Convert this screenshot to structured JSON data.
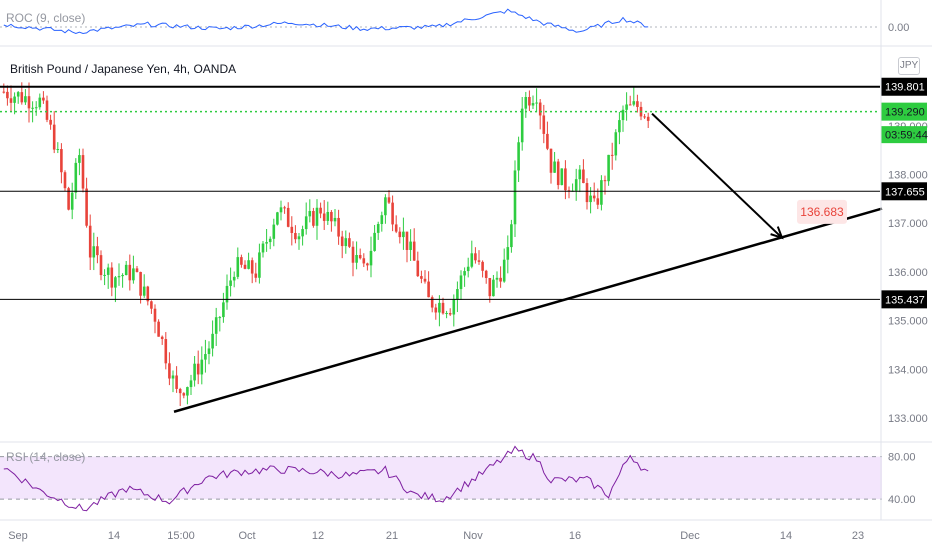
{
  "chart_data": {
    "type": "candlestick",
    "title": "British Pound / Japanese Yen, 4h, OANDA",
    "currency": "JPY",
    "price_axis": {
      "ticks": [
        "139.000",
        "138.000",
        "137.000",
        "136.000",
        "135.000",
        "134.000",
        "133.000"
      ],
      "range": [
        132.55,
        140.35
      ]
    },
    "time_axis": {
      "ticks": [
        "Sep",
        "14",
        "15:00",
        "Oct",
        "12",
        "21",
        "Nov",
        "16",
        "Dec",
        "14",
        "23"
      ]
    },
    "horizontal_levels": [
      {
        "label": "139.801",
        "value": 139.801,
        "style": "thick"
      },
      {
        "label": "137.655",
        "value": 137.655,
        "style": "thin"
      },
      {
        "label": "135.437",
        "value": 135.437,
        "style": "thin"
      }
    ],
    "current_price": {
      "label": "139.290",
      "value": 139.29,
      "countdown": "03:59:44"
    },
    "target": {
      "label": "136.683",
      "value": 136.683
    },
    "trendline": {
      "from": 133.13,
      "to": 137.3
    },
    "projection": {
      "from": 139.25,
      "to": 136.7
    },
    "candle_colors": {
      "up": "#2ecc40",
      "down": "#e8433a"
    },
    "bar_count": 180,
    "price_path": [
      {
        "bar": 0,
        "price": 139.7
      },
      {
        "bar": 10,
        "price": 139.5
      },
      {
        "bar": 14,
        "price": 138.7
      },
      {
        "bar": 18,
        "price": 137.3
      },
      {
        "bar": 21,
        "price": 138.4
      },
      {
        "bar": 24,
        "price": 136.4
      },
      {
        "bar": 30,
        "price": 135.9
      },
      {
        "bar": 36,
        "price": 136.0
      },
      {
        "bar": 42,
        "price": 135.1
      },
      {
        "bar": 48,
        "price": 133.5
      },
      {
        "bar": 52,
        "price": 133.8
      },
      {
        "bar": 58,
        "price": 134.6
      },
      {
        "bar": 64,
        "price": 136.1
      },
      {
        "bar": 70,
        "price": 136.0
      },
      {
        "bar": 76,
        "price": 137.3
      },
      {
        "bar": 82,
        "price": 136.8
      },
      {
        "bar": 88,
        "price": 137.3
      },
      {
        "bar": 94,
        "price": 136.7
      },
      {
        "bar": 100,
        "price": 136.0
      },
      {
        "bar": 106,
        "price": 137.5
      },
      {
        "bar": 112,
        "price": 136.6
      },
      {
        "bar": 118,
        "price": 135.4
      },
      {
        "bar": 124,
        "price": 135.3
      },
      {
        "bar": 130,
        "price": 136.4
      },
      {
        "bar": 135,
        "price": 135.6
      },
      {
        "bar": 140,
        "price": 136.3
      },
      {
        "bar": 144,
        "price": 139.5
      },
      {
        "bar": 148,
        "price": 139.7
      },
      {
        "bar": 152,
        "price": 138.2
      },
      {
        "bar": 156,
        "price": 137.8
      },
      {
        "bar": 160,
        "price": 137.9
      },
      {
        "bar": 164,
        "price": 137.3
      },
      {
        "bar": 168,
        "price": 138.2
      },
      {
        "bar": 172,
        "price": 139.3
      },
      {
        "bar": 176,
        "price": 139.4
      },
      {
        "bar": 179,
        "price": 139.25
      }
    ],
    "roc": {
      "label": "ROC (9, close)",
      "zero_label": "0.00",
      "path": [
        {
          "bar": 0,
          "value": 0.3
        },
        {
          "bar": 20,
          "value": -0.6
        },
        {
          "bar": 40,
          "value": 0.3
        },
        {
          "bar": 60,
          "value": -0.2
        },
        {
          "bar": 80,
          "value": 0.5
        },
        {
          "bar": 100,
          "value": -0.2
        },
        {
          "bar": 120,
          "value": 0.0
        },
        {
          "bar": 140,
          "value": 1.8
        },
        {
          "bar": 150,
          "value": 0.4
        },
        {
          "bar": 160,
          "value": -0.5
        },
        {
          "bar": 172,
          "value": 0.9
        },
        {
          "bar": 179,
          "value": 0.1
        }
      ]
    },
    "rsi": {
      "label": "RSI (14, close)",
      "levels": [
        "80.00",
        "40.00"
      ],
      "range": [
        25,
        90
      ],
      "path": [
        {
          "bar": 0,
          "value": 70
        },
        {
          "bar": 10,
          "value": 48
        },
        {
          "bar": 22,
          "value": 30
        },
        {
          "bar": 34,
          "value": 50
        },
        {
          "bar": 46,
          "value": 38
        },
        {
          "bar": 56,
          "value": 60
        },
        {
          "bar": 66,
          "value": 66
        },
        {
          "bar": 76,
          "value": 68
        },
        {
          "bar": 86,
          "value": 66
        },
        {
          "bar": 96,
          "value": 62
        },
        {
          "bar": 106,
          "value": 67
        },
        {
          "bar": 114,
          "value": 44
        },
        {
          "bar": 122,
          "value": 40
        },
        {
          "bar": 132,
          "value": 62
        },
        {
          "bar": 142,
          "value": 86
        },
        {
          "bar": 148,
          "value": 78
        },
        {
          "bar": 152,
          "value": 58
        },
        {
          "bar": 162,
          "value": 58
        },
        {
          "bar": 168,
          "value": 44
        },
        {
          "bar": 174,
          "value": 82
        },
        {
          "bar": 179,
          "value": 64
        }
      ]
    }
  }
}
